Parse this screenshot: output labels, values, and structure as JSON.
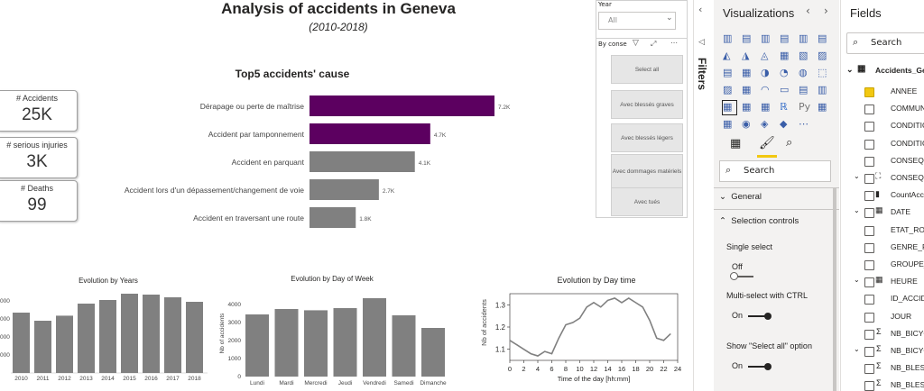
{
  "report": {
    "title": "Analysis of accidents in Geneva",
    "subtitle": "(2010-2018)"
  },
  "cards": [
    {
      "label": "# Accidents",
      "value": "25K"
    },
    {
      "label": "# serious injuries",
      "value": "3K"
    },
    {
      "label": "# Deaths",
      "value": "99"
    }
  ],
  "slicer": {
    "year_label": "Year",
    "year_value": "All",
    "conseq_label": "By conse",
    "buttons": [
      "Select all",
      "Avec blessés graves",
      "Avec blessés légers",
      "Avec dommages matériels",
      "Avec tués"
    ]
  },
  "chart_data": [
    {
      "type": "bar",
      "orientation": "horizontal",
      "title": "Top5 accidents' cause",
      "categories": [
        "Dérapage ou perte de maîtrise",
        "Accident par tamponnement",
        "Accident en parquant",
        "Accident lors d'un dépassement/changement de voie",
        "Accident en traversant une route"
      ],
      "values": [
        7.2,
        4.7,
        4.1,
        2.7,
        1.8
      ],
      "value_labels": [
        "7.2K",
        "4.7K",
        "4.1K",
        "2.7K",
        "1.8K"
      ],
      "colors": [
        "#5c0060",
        "#5c0060",
        "#808080",
        "#808080",
        "#808080"
      ]
    },
    {
      "type": "bar",
      "title": "Evolution by Years",
      "categories": [
        "2010",
        "2011",
        "2012",
        "2013",
        "2014",
        "2015",
        "2016",
        "2017",
        "2018"
      ],
      "values": [
        3350,
        2900,
        3180,
        3850,
        4050,
        4400,
        4350,
        4200,
        3950
      ],
      "ylim": [
        0,
        4500
      ],
      "yticks": [
        "000",
        "000",
        "000",
        "000"
      ],
      "color": "#808080"
    },
    {
      "type": "bar",
      "title": "Evolution by Day of Week",
      "ylabel": "Nb of accidents",
      "categories": [
        "Lundi",
        "Mardi",
        "Mercredi",
        "Jeudi",
        "Vendredi",
        "Samedi",
        "Dimanche"
      ],
      "values": [
        3450,
        3750,
        3680,
        3800,
        4350,
        3400,
        2700
      ],
      "ylim": [
        0,
        4500
      ],
      "yticks": [
        "0",
        "1000",
        "2000",
        "3000",
        "4000"
      ],
      "color": "#808080"
    },
    {
      "type": "line",
      "title": "Evolution by Day time",
      "xlabel": "Time of the day  [hh:mm]",
      "ylabel": "Nb of accidents",
      "x": [
        0,
        1,
        2,
        3,
        4,
        5,
        6,
        7,
        8,
        9,
        10,
        11,
        12,
        13,
        14,
        15,
        16,
        17,
        18,
        19,
        20,
        21,
        22,
        23
      ],
      "y": [
        1.14,
        1.12,
        1.1,
        1.08,
        1.07,
        1.09,
        1.08,
        1.15,
        1.21,
        1.22,
        1.24,
        1.29,
        1.31,
        1.29,
        1.32,
        1.33,
        1.31,
        1.33,
        1.31,
        1.29,
        1.23,
        1.15,
        1.14,
        1.17
      ],
      "ylim": [
        1.05,
        1.35
      ],
      "yticks": [
        "1.1",
        "1.2",
        "1.3"
      ],
      "xticks": [
        "0",
        "2",
        "4",
        "6",
        "8",
        "10",
        "12",
        "14",
        "16",
        "18",
        "20",
        "22",
        "24"
      ],
      "color": "#808080"
    }
  ],
  "filters_pane": {
    "label": "Filters"
  },
  "visualizations": {
    "header": "Visualizations",
    "search_placeholder": "Search",
    "sections": {
      "general": "General",
      "selection": "Selection controls"
    },
    "options": [
      {
        "label": "Single select",
        "state": "Off"
      },
      {
        "label": "Multi-select with CTRL",
        "state": "On"
      },
      {
        "label": "Show \"Select all\" option",
        "state": "On"
      }
    ]
  },
  "fields": {
    "header": "Fields",
    "search_placeholder": "Search",
    "table": "Accidents_Ge",
    "items": [
      {
        "name": "ANNEE",
        "checked": true,
        "type": "check"
      },
      {
        "name": "COMMUN",
        "checked": false,
        "type": "check"
      },
      {
        "name": "CONDITIO",
        "checked": false,
        "type": "check"
      },
      {
        "name": "CONDITIO",
        "checked": false,
        "type": "check"
      },
      {
        "name": "CONSEQ",
        "checked": false,
        "type": "check"
      },
      {
        "name": "CONSEQ",
        "checked": false,
        "type": "hier"
      },
      {
        "name": "CountAcc",
        "checked": false,
        "type": "measure"
      },
      {
        "name": "DATE",
        "checked": false,
        "type": "date"
      },
      {
        "name": "ETAT_RO",
        "checked": false,
        "type": "check"
      },
      {
        "name": "GENRE_R",
        "checked": false,
        "type": "check"
      },
      {
        "name": "GROUPE_",
        "checked": false,
        "type": "check"
      },
      {
        "name": "HEURE",
        "checked": false,
        "type": "date"
      },
      {
        "name": "ID_ACCID",
        "checked": false,
        "type": "check"
      },
      {
        "name": "JOUR",
        "checked": false,
        "type": "check"
      },
      {
        "name": "NB_BICYC",
        "checked": false,
        "type": "sigma"
      },
      {
        "name": "NB_BICYC",
        "checked": false,
        "type": "sigmahier"
      },
      {
        "name": "NB_BLESS",
        "checked": false,
        "type": "sigma"
      },
      {
        "name": "NB_BLESS",
        "checked": false,
        "type": "sigma"
      }
    ]
  }
}
